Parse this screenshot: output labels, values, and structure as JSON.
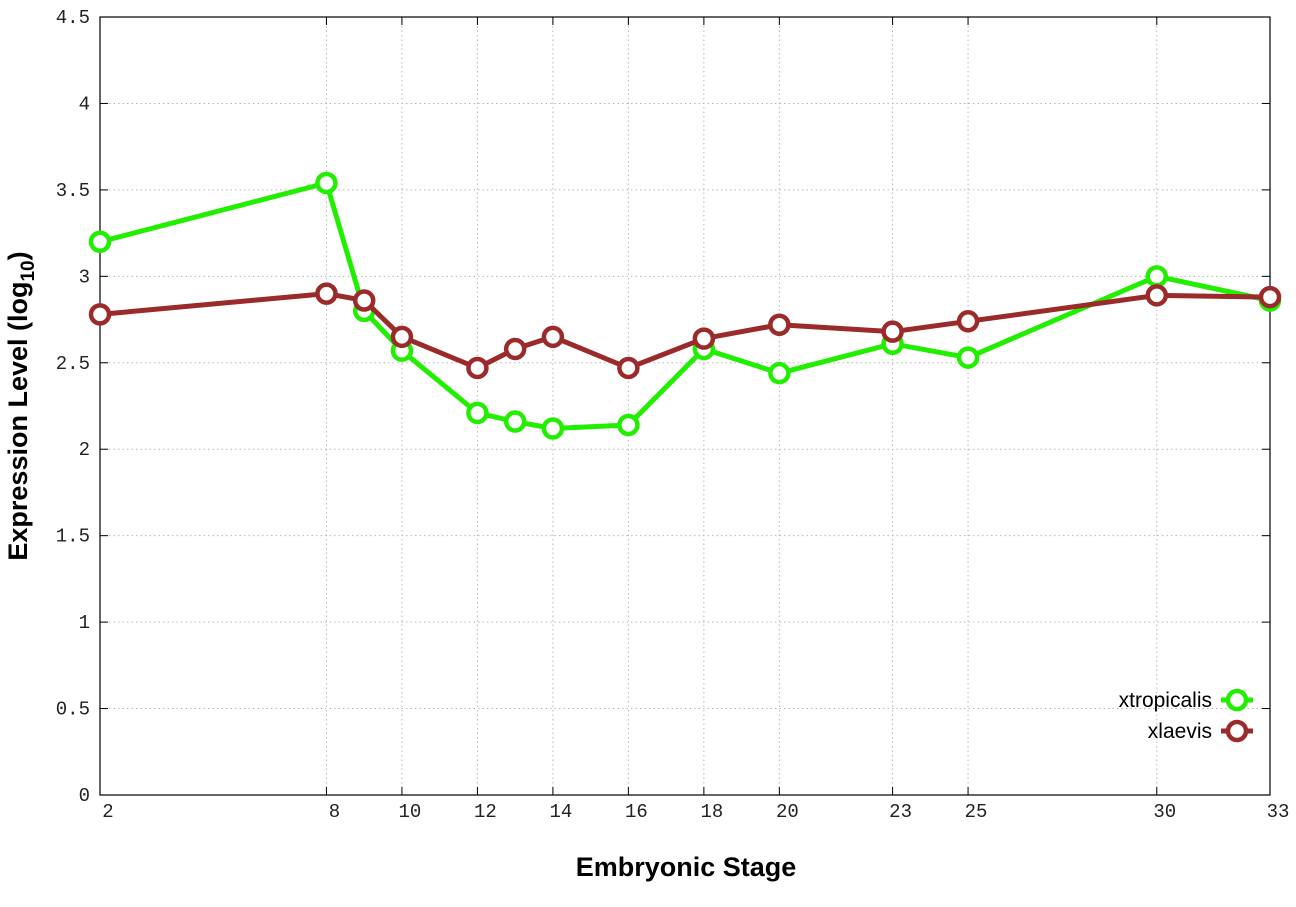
{
  "chart_data": {
    "type": "line",
    "xlabel": "Embryonic Stage",
    "ylabel_main": "Expression Level (log",
    "ylabel_sub": "10",
    "ylabel_close": ")",
    "x": [
      2,
      8,
      9,
      10,
      12,
      13,
      14,
      16,
      18,
      20,
      23,
      25,
      30,
      33
    ],
    "x_tick_labels": [
      "2",
      "8",
      "10",
      "12",
      "14",
      "16",
      "18",
      "20",
      "23",
      "25",
      "30",
      "33"
    ],
    "x_tick_values": [
      2,
      8,
      10,
      12,
      14,
      16,
      18,
      20,
      23,
      25,
      30,
      33
    ],
    "xlim": [
      2,
      33
    ],
    "ylim": [
      0,
      4.5
    ],
    "y_tick_values": [
      0,
      0.5,
      1,
      1.5,
      2,
      2.5,
      3,
      3.5,
      4,
      4.5
    ],
    "y_tick_labels": [
      "0",
      "0.5",
      "1",
      "1.5",
      "2",
      "2.5",
      "3",
      "3.5",
      "4",
      "4.5"
    ],
    "grid": true,
    "legend_position": "bottom-right",
    "series": [
      {
        "name": "xtropicalis",
        "color": "#22ee00",
        "values": [
          3.2,
          3.54,
          2.8,
          2.57,
          2.21,
          2.16,
          2.12,
          2.14,
          2.58,
          2.44,
          2.61,
          2.53,
          3.0,
          2.86
        ]
      },
      {
        "name": "xlaevis",
        "color": "#9b2a2a",
        "values": [
          2.78,
          2.9,
          2.86,
          2.65,
          2.47,
          2.58,
          2.65,
          2.47,
          2.64,
          2.72,
          2.68,
          2.74,
          2.89,
          2.88
        ]
      }
    ]
  }
}
